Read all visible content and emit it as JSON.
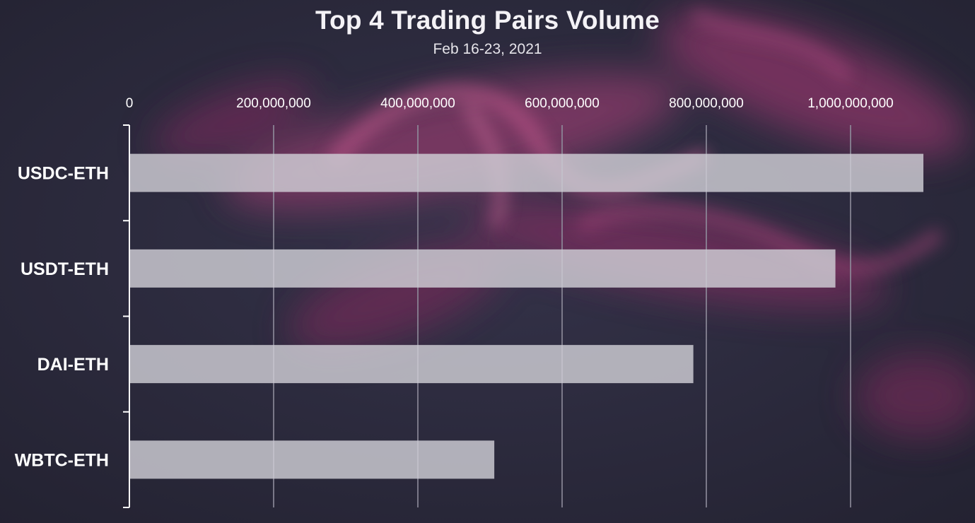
{
  "chart_data": {
    "type": "bar",
    "orientation": "horizontal",
    "title": "Top 4 Trading Pairs Volume",
    "subtitle": "Feb 16-23, 2021",
    "categories": [
      "USDC-ETH",
      "USDT-ETH",
      "DAI-ETH",
      "WBTC-ETH"
    ],
    "values": [
      1101000000,
      979000000,
      782000000,
      506000000
    ],
    "x_ticks": [
      0,
      200000000,
      400000000,
      600000000,
      800000000,
      1000000000
    ],
    "x_tick_labels": [
      "0",
      "200,000,000",
      "400,000,000",
      "600,000,000",
      "800,000,000",
      "1,000,000,000"
    ],
    "xlim": [
      0,
      1100000000
    ],
    "xlabel": "",
    "ylabel": "",
    "x_axis_position": "top",
    "grid": true,
    "legend": "none"
  },
  "colors": {
    "background": "#2c2b3e",
    "bar": "#cfced6",
    "gridline": "#8f8d9c",
    "axis": "#ffffff",
    "text": "#ffffff",
    "accent_smoke": "#b2447a"
  }
}
